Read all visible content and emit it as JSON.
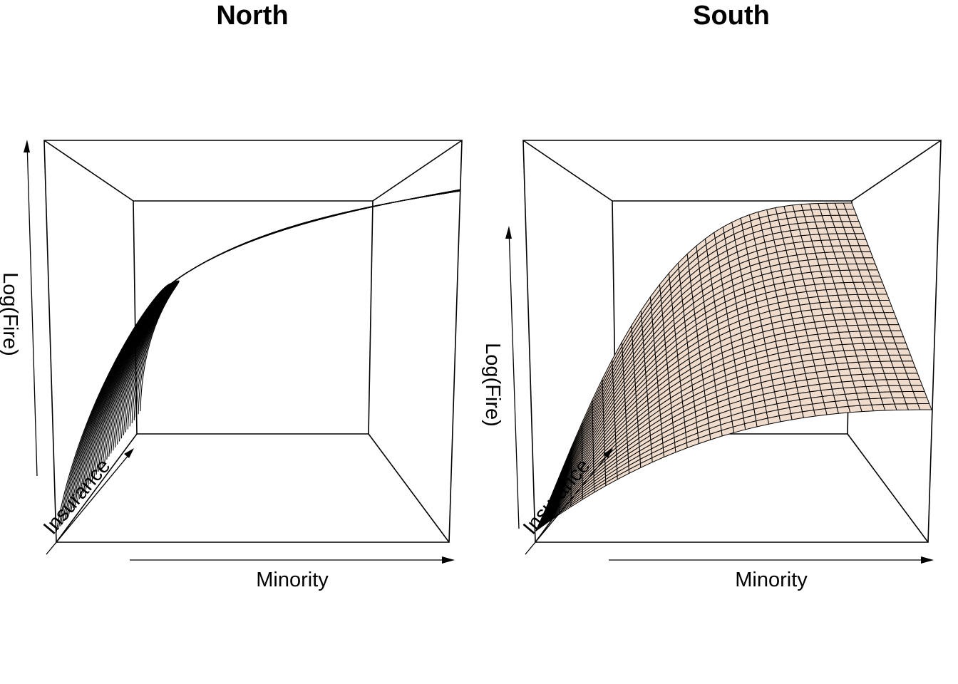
{
  "chart_data": [
    {
      "type": "surface",
      "title": "North",
      "xlabel": "Minority",
      "ylabel": "Insurance",
      "zlabel": "Log(Fire)",
      "facet_color": "#000000",
      "grid": false,
      "surface": "steep rise along Insurance, levelling off along Minority (dense dark wireframe)"
    },
    {
      "type": "surface",
      "title": "South",
      "xlabel": "Minority",
      "ylabel": "Insurance",
      "zlabel": "Log(Fire)",
      "facet_color": "#f0dccc",
      "grid": false,
      "surface": "rise along Insurance, gentle slope down along Minority (peach wireframe facets)"
    }
  ]
}
